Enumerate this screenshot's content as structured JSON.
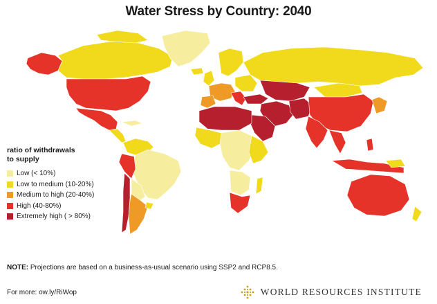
{
  "title": "Water Stress by Country: 2040",
  "legend": {
    "title": "ratio of withdrawals\nto supply",
    "items": [
      {
        "label": "Low (< 10%)",
        "color": "#f6ee9e"
      },
      {
        "label": "Low to medium (10-20%)",
        "color": "#f1d91c"
      },
      {
        "label": "Medium to high  (20-40%)",
        "color": "#ef9a27"
      },
      {
        "label": "High (40-80%)",
        "color": "#e5332a"
      },
      {
        "label": "Extremely high ( > 80%)",
        "color": "#b51f2e"
      }
    ]
  },
  "note": {
    "label": "NOTE:",
    "text": " Projections are based on a business-as-usual scenario using SSP2 and RCP8.5."
  },
  "footer": "For more: ow.ly/RiWop",
  "publisher": "WORLD RESOURCES INSTITUTE",
  "map_colors": {
    "low": "#f6ee9e",
    "low_medium": "#f1d91c",
    "medium_high": "#ef9a27",
    "high": "#e5332a",
    "extremely_high": "#b51f2e",
    "greenland": "#f6ee9e"
  }
}
